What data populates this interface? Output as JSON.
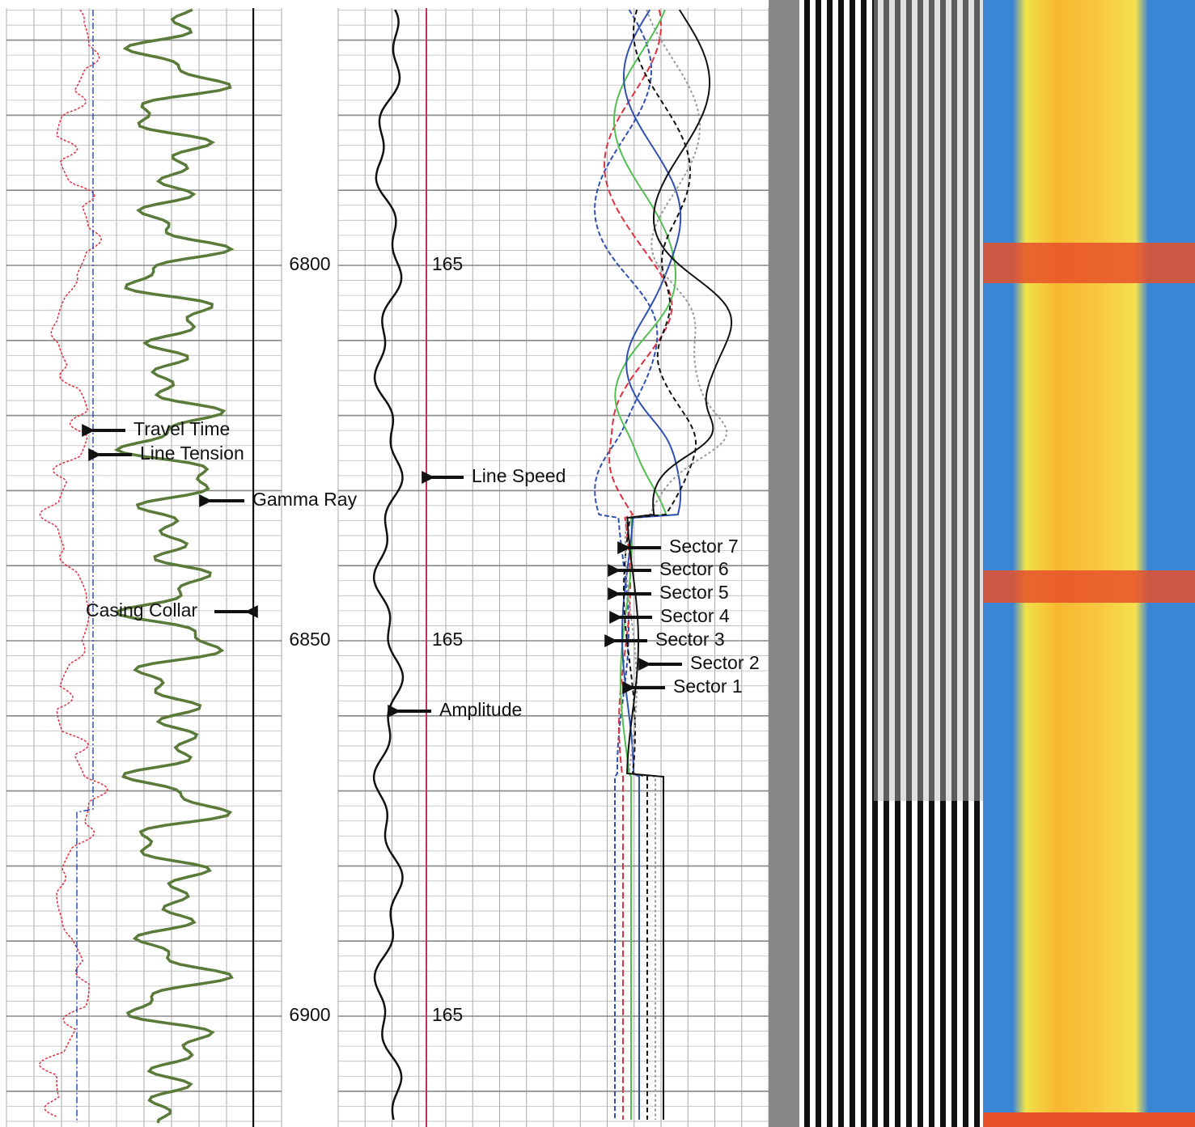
{
  "depth_labels": [
    "6800",
    "6850",
    "6900"
  ],
  "line_speed_labels": [
    "165",
    "165",
    "165"
  ],
  "track1_annotations": [
    "Travel Time",
    "Line Tension",
    "Gamma Ray",
    "Casing Collar"
  ],
  "track2_annotations": [
    "Line Speed",
    "Amplitude",
    "Sector 7",
    "Sector 6",
    "Sector 5",
    "Sector 4",
    "Sector 3",
    "Sector 2",
    "Sector 1"
  ]
}
